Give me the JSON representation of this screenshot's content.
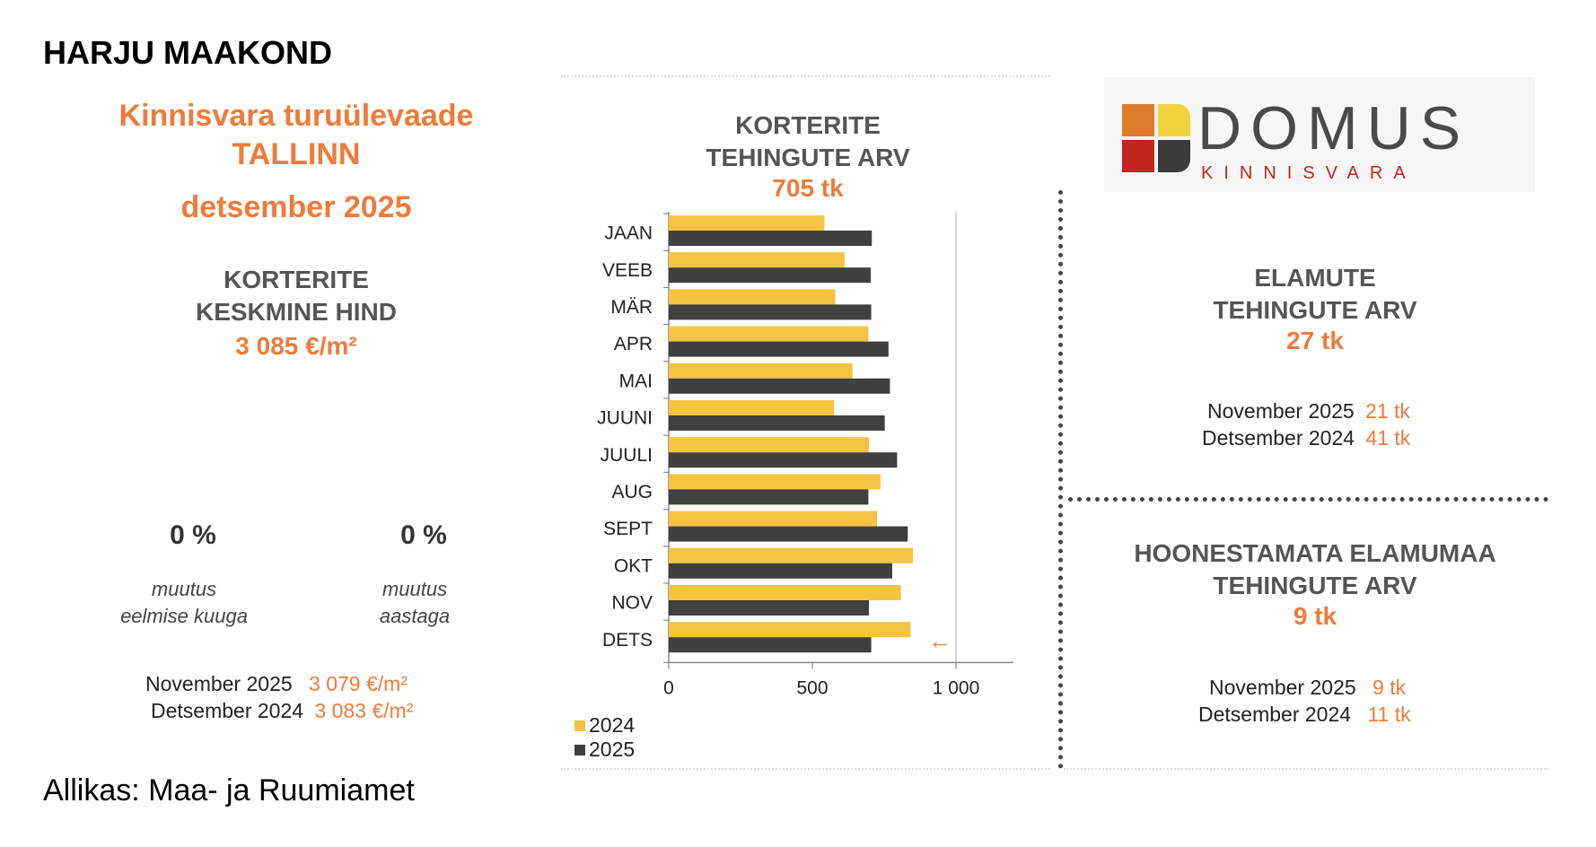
{
  "header": {
    "region": "HARJU MAAKOND",
    "report_title": "Kinnisvara turuülevaade",
    "city": "TALLINN",
    "period": "detsember 2025"
  },
  "price": {
    "title_line1": "KORTERITE",
    "title_line2": "KESKMINE HIND",
    "value": "3 085 €/m²",
    "change_month": "0 %",
    "change_month_label_1": "muutus",
    "change_month_label_2": "eelmise kuuga",
    "change_year": "0 %",
    "change_year_label_1": "muutus",
    "change_year_label_2": "aastaga",
    "cmp": [
      {
        "label": "November 2025",
        "value": "3 079 €/m²"
      },
      {
        "label": "Detsember 2024",
        "value": "3 083 €/m²"
      }
    ]
  },
  "chart_data": {
    "type": "bar",
    "orientation": "horizontal",
    "title_line1": "KORTERITE",
    "title_line2": "TEHINGUTE ARV",
    "total": "705 tk",
    "categories": [
      "JAAN",
      "VEEB",
      "MÄR",
      "APR",
      "MAI",
      "JUUNI",
      "JUULI",
      "AUG",
      "SEPT",
      "OKT",
      "NOV",
      "DETS"
    ],
    "series": [
      {
        "name": "2024",
        "color": "#f5c342",
        "values": [
          542,
          612,
          580,
          695,
          640,
          575,
          697,
          737,
          725,
          850,
          808,
          842
        ]
      },
      {
        "name": "2025",
        "color": "#404040",
        "values": [
          707,
          703,
          705,
          765,
          770,
          752,
          795,
          695,
          832,
          778,
          697,
          705
        ]
      }
    ],
    "xlim": [
      0,
      1200
    ],
    "xticks": [
      0,
      500,
      1000
    ],
    "xtick_labels": [
      "0",
      "500",
      "1 000"
    ],
    "reference_line": 1000,
    "marker_symbol": "←",
    "marker_category": "DETS",
    "marker_value": 1000
  },
  "logo": {
    "name": "DOMUS",
    "sub": "KINNISVARA",
    "colors": [
      "#e07a2c",
      "#f2d33e",
      "#c0271f",
      "#3b3b3b"
    ]
  },
  "houses": {
    "title_line1": "ELAMUTE",
    "title_line2": "TEHINGUTE ARV",
    "value": "27 tk",
    "cmp": [
      {
        "label": "November 2025",
        "value": "21 tk"
      },
      {
        "label": "Detsember 2024",
        "value": "41 tk"
      }
    ]
  },
  "land": {
    "title_line1": "HOONESTAMATA ELAMUMAA",
    "title_line2": "TEHINGUTE ARV",
    "value": "9 tk",
    "cmp": [
      {
        "label": "November 2025",
        "value": "9 tk"
      },
      {
        "label": "Detsember 2024",
        "value": "11 tk"
      }
    ]
  },
  "footer": {
    "source": "Allikas: Maa- ja Ruumiamet"
  }
}
